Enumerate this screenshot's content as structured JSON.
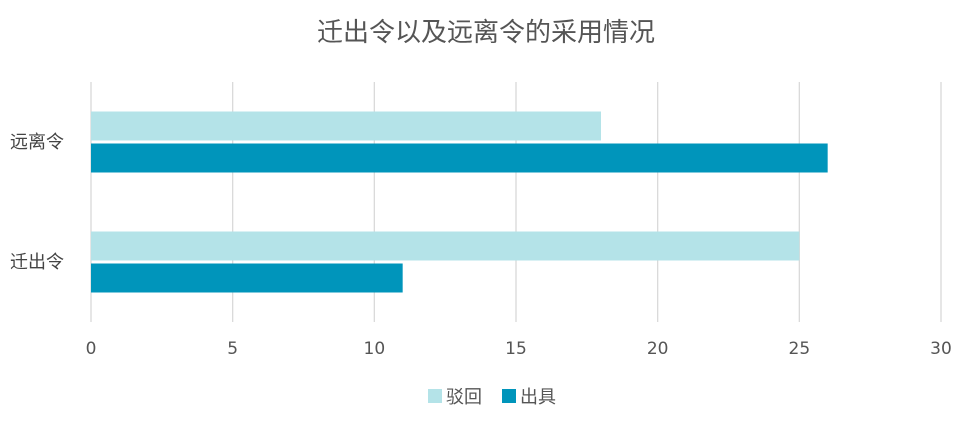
{
  "chart_data": {
    "type": "bar",
    "orientation": "horizontal",
    "title": "迁出令以及远离令的采用情况",
    "categories": [
      "迁出令",
      "远离令"
    ],
    "series": [
      {
        "name": "驳回",
        "values": [
          25,
          18
        ],
        "color": "#b4e3e8"
      },
      {
        "name": "出具",
        "values": [
          11,
          26
        ],
        "color": "#0095bb"
      }
    ],
    "xlim": [
      0,
      30
    ],
    "xticks": [
      0,
      5,
      10,
      15,
      20,
      25,
      30
    ],
    "grid": true,
    "legend_position": "bottom"
  }
}
